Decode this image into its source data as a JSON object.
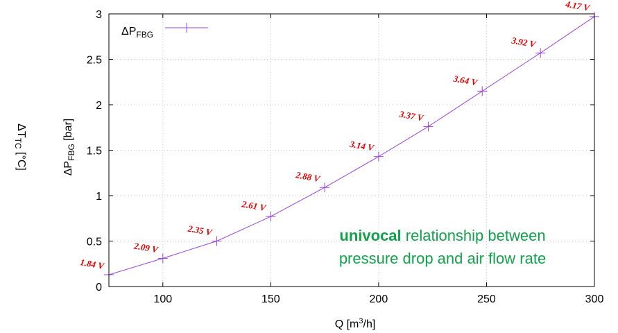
{
  "chart_data": {
    "type": "line",
    "xlabel": "Q [m",
    "xlabel_sup": "3",
    "xlabel_tail": "/h]",
    "ylabel_main": "ΔP",
    "ylabel_sub": "FBG",
    "ylabel_tail": " [bar]",
    "ylabel2_main": "ΔT",
    "ylabel2_sub": "TC",
    "ylabel2_tail": " [°C]",
    "xlim": [
      75,
      300
    ],
    "ylim": [
      0,
      3
    ],
    "xticks": [
      "100",
      "150",
      "200",
      "250",
      "300"
    ],
    "yticks": [
      "0",
      "0.5",
      "1",
      "1.5",
      "2",
      "2.5",
      "3"
    ],
    "grid": true,
    "legend_position": "top-left",
    "series": [
      {
        "name_main": "ΔP",
        "name_sub": "FBG",
        "color": "#9a44d8",
        "x": [
          75,
          100,
          125,
          150,
          175,
          200,
          223,
          248,
          275,
          300
        ],
        "y": [
          0.13,
          0.31,
          0.5,
          0.77,
          1.09,
          1.43,
          1.76,
          2.15,
          2.57,
          2.97
        ],
        "point_labels": [
          "1.84 V",
          "2.09 V",
          "2.35 V",
          "2.61 V",
          "2.88 V",
          "3.14 V",
          "3.37 V",
          "3.64 V",
          "3.92 V",
          "4.17 V"
        ]
      }
    ],
    "annotation": {
      "bold_word": "univocal",
      "line1_rest": " relationship between",
      "line2": "pressure drop and air flow rate"
    },
    "colors": {
      "series": "#9a44d8",
      "point_labels": "#e00000",
      "annotation": "#13a04b"
    }
  }
}
